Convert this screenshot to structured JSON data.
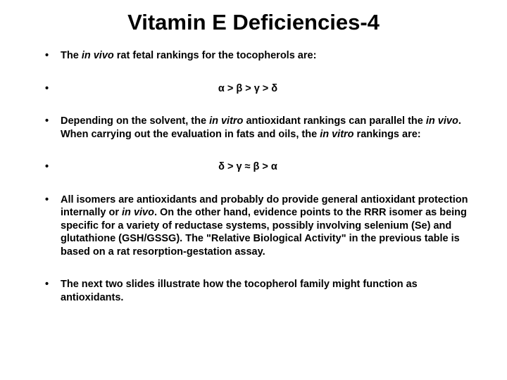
{
  "title": "Vitamin E Deficiencies-4",
  "bullets": {
    "b1_pre": "The ",
    "b1_it1": "in vivo",
    "b1_post": " rat fetal rankings for the tocopherols are:",
    "b2": "α > β > γ > δ",
    "b3_a": "Depending on the solvent, the ",
    "b3_it1": "in vitro",
    "b3_b": " antioxidant rankings can parallel the ",
    "b3_it2": "in vivo",
    "b3_c": ".  When carrying out the evaluation in fats and oils, the ",
    "b3_it3": "in vitro",
    "b3_d": " rankings are:",
    "b4": "δ > γ ≈ β > α",
    "b5_a": "All isomers are antioxidants and probably do provide general antioxidant protection internally or ",
    "b5_it1": "in vivo",
    "b5_b": ".  On the other hand, evidence points to the RRR isomer as being specific for a variety of reductase systems, possibly involving selenium (Se) and glutathione (GSH/GSSG).  The \"Relative Biological Activity\" in the previous table is based on a rat resorption-gestation assay.",
    "b6": "The next two slides illustrate how the tocopherol family might function as antioxidants."
  },
  "colors": {
    "text": "#000000",
    "background": "#ffffff"
  },
  "typography": {
    "title_fontsize": 31,
    "body_fontsize": 14.5,
    "font_family": "Arial"
  }
}
